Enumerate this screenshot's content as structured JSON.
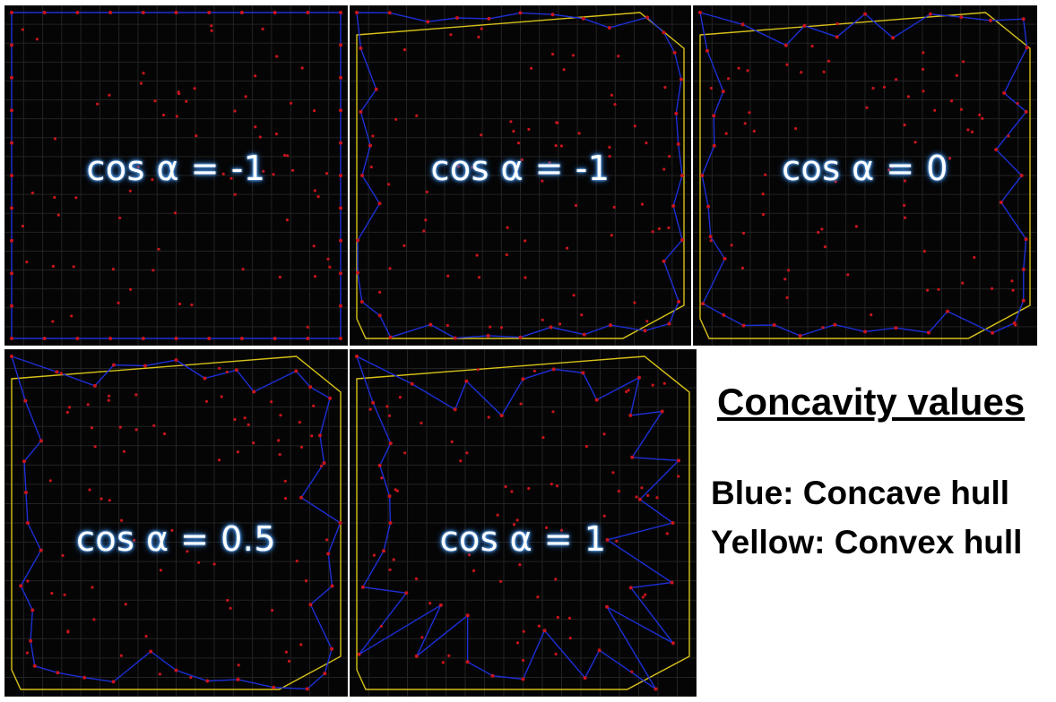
{
  "panels": [
    {
      "label": "cos α = -1"
    },
    {
      "label": "cos α = -1"
    },
    {
      "label": "cos α = 0"
    },
    {
      "label": "cos α = 0.5"
    },
    {
      "label": "cos α = 1"
    }
  ],
  "legend": {
    "title": "Concavity values",
    "items": [
      "Blue: Concave hull",
      "Yellow: Convex hull"
    ]
  },
  "colors": {
    "concave_hull": "#1d2fd6",
    "convex_hull": "#d8c21a",
    "points": "#c8141c",
    "grid": "#232323",
    "panel_background": "#050505"
  }
}
